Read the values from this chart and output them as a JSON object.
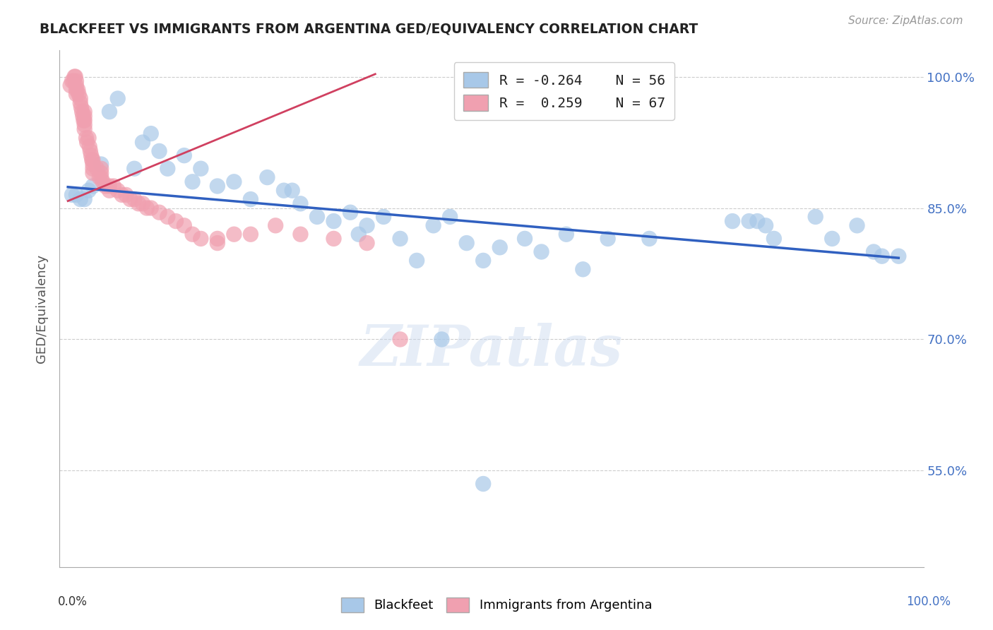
{
  "title": "BLACKFEET VS IMMIGRANTS FROM ARGENTINA GED/EQUIVALENCY CORRELATION CHART",
  "source": "Source: ZipAtlas.com",
  "ylabel": "GED/Equivalency",
  "ylim": [
    0.44,
    1.03
  ],
  "xlim": [
    -0.01,
    1.03
  ],
  "yticks": [
    0.55,
    0.7,
    0.85,
    1.0
  ],
  "ytick_labels": [
    "55.0%",
    "70.0%",
    "85.0%",
    "100.0%"
  ],
  "xtick_positions": [
    0.0,
    0.2,
    0.4,
    0.6,
    0.8,
    1.0
  ],
  "legend_r_blue": "R = -0.264",
  "legend_n_blue": "N = 56",
  "legend_r_pink": "R =  0.259",
  "legend_n_pink": "N = 67",
  "blue_color": "#A8C8E8",
  "pink_color": "#F0A0B0",
  "blue_line_color": "#3060C0",
  "pink_line_color": "#D04060",
  "background_color": "#FFFFFF",
  "grid_color": "#CCCCCC",
  "watermark": "ZIPatlas",
  "blue_scatter_x": [
    0.005,
    0.01,
    0.015,
    0.02,
    0.025,
    0.03,
    0.04,
    0.05,
    0.06,
    0.08,
    0.09,
    0.1,
    0.11,
    0.12,
    0.14,
    0.15,
    0.16,
    0.18,
    0.2,
    0.22,
    0.24,
    0.26,
    0.27,
    0.28,
    0.3,
    0.32,
    0.34,
    0.36,
    0.38,
    0.4,
    0.42,
    0.44,
    0.46,
    0.48,
    0.5,
    0.52,
    0.55,
    0.57,
    0.6,
    0.62,
    0.65,
    0.7,
    0.8,
    0.82,
    0.83,
    0.84,
    0.85,
    0.9,
    0.92,
    0.95,
    0.97,
    0.98,
    1.0,
    0.35,
    0.45,
    0.5
  ],
  "blue_scatter_y": [
    0.865,
    0.865,
    0.86,
    0.86,
    0.87,
    0.875,
    0.9,
    0.96,
    0.975,
    0.895,
    0.925,
    0.935,
    0.915,
    0.895,
    0.91,
    0.88,
    0.895,
    0.875,
    0.88,
    0.86,
    0.885,
    0.87,
    0.87,
    0.855,
    0.84,
    0.835,
    0.845,
    0.83,
    0.84,
    0.815,
    0.79,
    0.83,
    0.84,
    0.81,
    0.79,
    0.805,
    0.815,
    0.8,
    0.82,
    0.78,
    0.815,
    0.815,
    0.835,
    0.835,
    0.835,
    0.83,
    0.815,
    0.84,
    0.815,
    0.83,
    0.8,
    0.795,
    0.795,
    0.82,
    0.7,
    0.535
  ],
  "pink_scatter_x": [
    0.003,
    0.005,
    0.007,
    0.008,
    0.009,
    0.01,
    0.01,
    0.01,
    0.01,
    0.012,
    0.013,
    0.015,
    0.015,
    0.016,
    0.017,
    0.018,
    0.019,
    0.02,
    0.02,
    0.02,
    0.02,
    0.02,
    0.022,
    0.023,
    0.025,
    0.026,
    0.027,
    0.028,
    0.029,
    0.03,
    0.03,
    0.03,
    0.03,
    0.035,
    0.038,
    0.04,
    0.04,
    0.04,
    0.042,
    0.045,
    0.05,
    0.05,
    0.055,
    0.06,
    0.065,
    0.07,
    0.075,
    0.08,
    0.085,
    0.09,
    0.095,
    0.1,
    0.11,
    0.12,
    0.13,
    0.14,
    0.15,
    0.16,
    0.18,
    0.2,
    0.22,
    0.25,
    0.28,
    0.32,
    0.36,
    0.4,
    0.18
  ],
  "pink_scatter_y": [
    0.99,
    0.995,
    0.995,
    1.0,
    1.0,
    0.995,
    0.99,
    0.985,
    0.98,
    0.985,
    0.98,
    0.975,
    0.97,
    0.965,
    0.96,
    0.955,
    0.95,
    0.96,
    0.955,
    0.95,
    0.945,
    0.94,
    0.93,
    0.925,
    0.93,
    0.92,
    0.915,
    0.91,
    0.905,
    0.905,
    0.9,
    0.895,
    0.89,
    0.895,
    0.885,
    0.895,
    0.89,
    0.885,
    0.88,
    0.875,
    0.875,
    0.87,
    0.875,
    0.87,
    0.865,
    0.865,
    0.86,
    0.86,
    0.855,
    0.855,
    0.85,
    0.85,
    0.845,
    0.84,
    0.835,
    0.83,
    0.82,
    0.815,
    0.81,
    0.82,
    0.82,
    0.83,
    0.82,
    0.815,
    0.81,
    0.7,
    0.815
  ],
  "blue_trend_x0": 0.0,
  "blue_trend_x1": 1.0,
  "blue_trend_y0": 0.874,
  "blue_trend_y1": 0.793,
  "pink_trend_x0": 0.0,
  "pink_trend_x1": 0.37,
  "pink_trend_y0": 0.858,
  "pink_trend_y1": 1.003
}
